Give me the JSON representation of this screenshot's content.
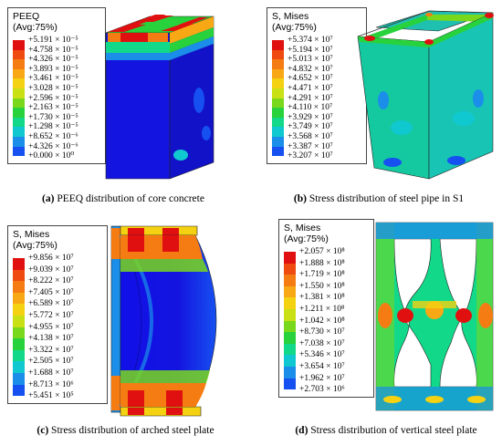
{
  "panels": [
    {
      "id": "a",
      "legend_title": "PEEQ\n(Avg:75%)",
      "legend_values": [
        "+5.191 × 10⁻⁵",
        "+4.758 × 10⁻⁵",
        "+4.326 × 10⁻⁵",
        "+3.893 × 10⁻⁵",
        "+3.461 × 10⁻⁵",
        "+3.028 × 10⁻⁵",
        "+2.596 × 10⁻⁵",
        "+2.163 × 10⁻⁵",
        "+1.730 × 10⁻⁵",
        "+1.298 × 10⁻⁵",
        "+8.652 × 10⁻⁶",
        "+4.326 × 10⁻⁶",
        "+0.000 × 10⁰"
      ],
      "caption_label": "(a)",
      "caption_text": " PEEQ distribution of core concrete"
    },
    {
      "id": "b",
      "legend_title": "S, Mises\n(Avg:75%)",
      "legend_values": [
        "+5.374 × 10⁷",
        "+5.194 × 10⁷",
        "+5.013 × 10⁷",
        "+4.832 × 10⁷",
        "+4.652 × 10⁷",
        "+4.471 × 10⁷",
        "+4.291 × 10⁷",
        "+4.110 × 10⁷",
        "+3.929 × 10⁷",
        "+3.749 × 10⁷",
        "+3.568 × 10⁷",
        "+3.387 × 10⁷",
        "+3.207 × 10⁷"
      ],
      "caption_label": "(b)",
      "caption_text": " Stress distribution of steel pipe in S1"
    },
    {
      "id": "c",
      "legend_title": "S, Mises\n(Avg:75%)",
      "legend_values": [
        "+9.856 × 10⁷",
        "+9.039 × 10⁷",
        "+8.222 × 10⁷",
        "+7.405 × 10⁷",
        "+6.589 × 10⁷",
        "+5.772 × 10⁷",
        "+4.955 × 10⁷",
        "+4.138 × 10⁷",
        "+3.322 × 10⁷",
        "+2.505 × 10⁷",
        "+1.688 × 10⁷",
        "+8.713 × 10⁶",
        "+5.451 × 10⁵"
      ],
      "caption_label": "(c)",
      "caption_text": " Stress distribution of arched steel plate"
    },
    {
      "id": "d",
      "legend_title": "S, Mises\n(Avg:75%)",
      "legend_values": [
        "+2.057 × 10⁸",
        "+1.888 × 10⁸",
        "+1.719 × 10⁸",
        "+1.550 × 10⁸",
        "+1.381 × 10⁸",
        "+1.211 × 10⁸",
        "+1.042 × 10⁸",
        "+8.730 × 10⁷",
        "+7.038 × 10⁷",
        "+5.346 × 10⁷",
        "+3.654 × 10⁷",
        "+1.962 × 10⁷",
        "+2.703 × 10⁶"
      ],
      "caption_label": "(d)",
      "caption_text": " Stress distribution of vertical steel plate"
    }
  ],
  "colormap": [
    "#e01010",
    "#ef4a10",
    "#f57c12",
    "#f8a814",
    "#f4d212",
    "#c8e014",
    "#7ad81c",
    "#28d23c",
    "#12d88a",
    "#10c8d0",
    "#1a8ee8",
    "#1650f0",
    "#1010e8"
  ]
}
